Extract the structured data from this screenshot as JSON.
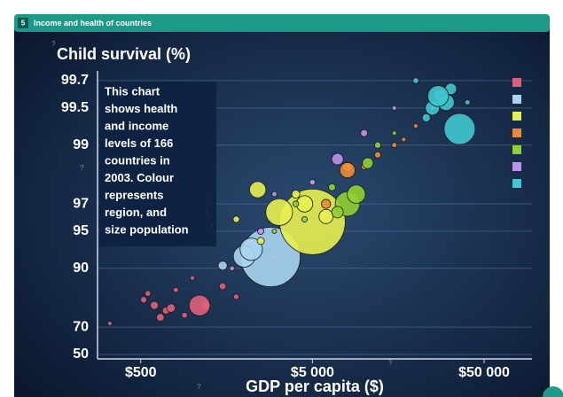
{
  "header": {
    "number": "5",
    "title": "Income and health of countries"
  },
  "help_icon": "?",
  "chart_data": {
    "type": "bubble",
    "ylabel": "Child survival (%)",
    "xlabel": "GDP per capita ($)",
    "annotation_lines": [
      "This chart",
      "shows health",
      "and income",
      "levels of 166",
      "countries in",
      "2003. Colour",
      "represents",
      "region, and",
      "size population"
    ],
    "xscale": "log",
    "yscale": "inverse-log",
    "xlim": [
      280,
      95000
    ],
    "ylim": [
      50,
      99.75
    ],
    "xticks": [
      {
        "value": 500,
        "label": "$500"
      },
      {
        "value": 5000,
        "label": "$5 000"
      },
      {
        "value": 50000,
        "label": "$50 000"
      }
    ],
    "yticks": [
      50,
      70,
      90,
      95,
      97,
      99,
      99.5,
      99.7
    ],
    "grid": true,
    "series": [
      {
        "color": "#e0607a",
        "x": [
          520,
          600,
          700,
          800,
          900,
          1000,
          1200,
          1500,
          2000,
          650,
          3000,
          550,
          1100,
          330,
          750,
          1800
        ],
        "values": [
          82,
          80,
          78,
          85,
          76,
          88,
          80,
          86,
          90,
          75,
          92,
          84,
          80,
          72,
          79,
          83
        ],
        "sizes": [
          12,
          20,
          15,
          8,
          10,
          6,
          30,
          14,
          5,
          18,
          4,
          10,
          130,
          3,
          22,
          9
        ]
      },
      {
        "color": "#a8d4f0",
        "x": [
          2850,
          2000,
          2200,
          1500,
          4500,
          1300
        ],
        "values": [
          91.9,
          92,
          93,
          90.5,
          97,
          95.5
        ],
        "sizes": [
          1060,
          140,
          150,
          25,
          20,
          5
        ]
      },
      {
        "color": "#e8f050",
        "x": [
          5000,
          3200,
          4000,
          8000,
          2500,
          25000,
          30000,
          2400,
          4500,
          6000,
          1800
        ],
        "values": [
          95.8,
          96.5,
          97.5,
          98.5,
          94,
          99.5,
          99.6,
          97.7,
          97,
          96.2,
          96
        ],
        "sizes": [
          1290,
          215,
          20,
          25,
          15,
          5,
          4,
          80,
          80,
          60,
          12
        ]
      },
      {
        "color": "#f08a30",
        "x": [
          8000,
          10000,
          15000,
          20000,
          6000,
          30000,
          12000,
          17000,
          1200
        ],
        "values": [
          98.4,
          98.5,
          99,
          99.3,
          97,
          99.6,
          98.8,
          99.1,
          96.6
        ],
        "sizes": [
          70,
          10,
          8,
          6,
          25,
          4,
          12,
          5,
          6
        ]
      },
      {
        "color": "#90d030",
        "x": [
          8000,
          9000,
          4000,
          5000,
          12000,
          7000,
          3000,
          10500,
          6500,
          15000,
          4500
        ],
        "values": [
          97,
          97.5,
          97,
          98,
          99,
          96.5,
          95,
          98.6,
          97.8,
          99.2,
          96
        ],
        "sizes": [
          180,
          100,
          10,
          8,
          12,
          40,
          6,
          35,
          15,
          5,
          9
        ]
      },
      {
        "color": "#c090f0",
        "x": [
          5000,
          10000,
          3000,
          15000,
          2500,
          7000,
          1700
        ],
        "values": [
          98,
          99.2,
          97.5,
          99.5,
          95,
          98.7,
          90
        ],
        "sizes": [
          10,
          15,
          8,
          6,
          12,
          40,
          7
        ]
      },
      {
        "color": "#40c8d0",
        "x": [
          36000,
          28000,
          30000,
          25000,
          20000,
          32000,
          27000,
          40000,
          23000
        ],
        "values": [
          99.26,
          99.6,
          99.55,
          99.5,
          99.7,
          99.65,
          99.6,
          99.55,
          99.4
        ],
        "sizes": [
          290,
          60,
          80,
          60,
          10,
          40,
          130,
          8,
          20
        ]
      }
    ]
  }
}
